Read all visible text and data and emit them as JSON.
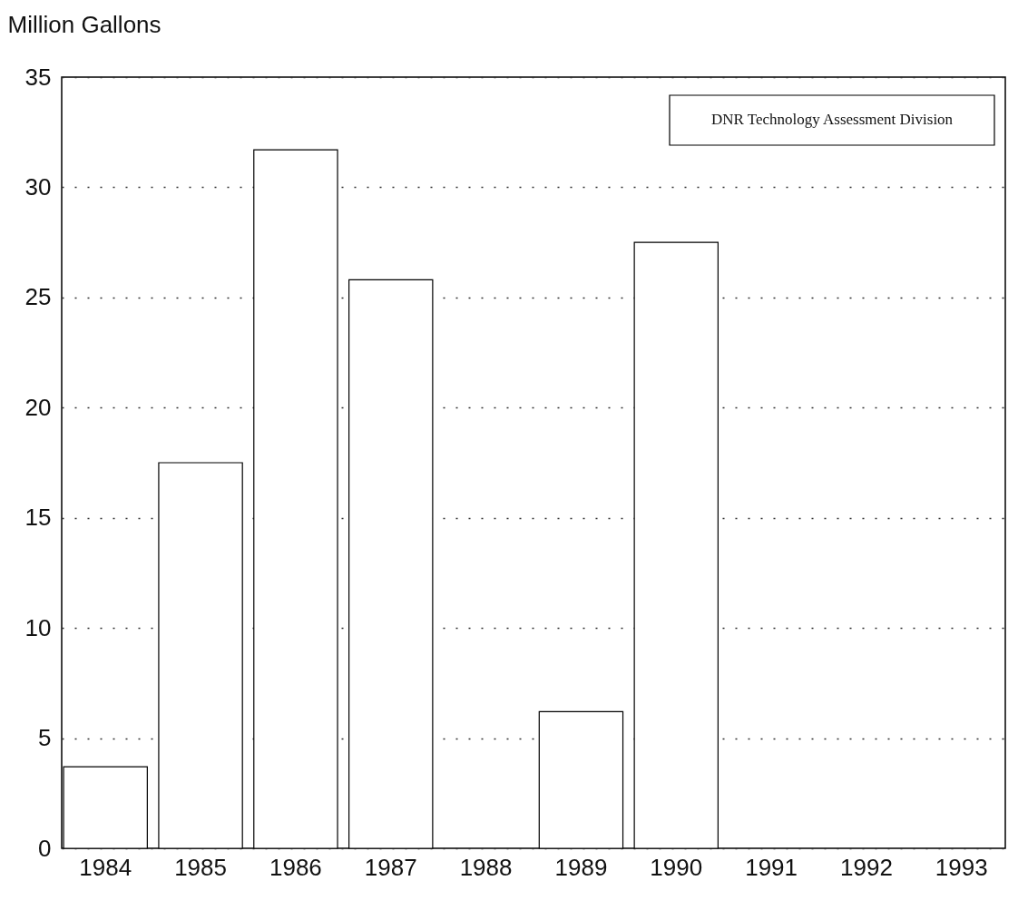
{
  "chart_data": {
    "type": "bar",
    "ylabel": "Million Gallons",
    "categories": [
      "1984",
      "1985",
      "1986",
      "1987",
      "1988",
      "1989",
      "1990",
      "1991",
      "1992",
      "1993"
    ],
    "values": [
      3.7,
      17.5,
      31.7,
      25.8,
      null,
      6.2,
      27.5,
      null,
      null,
      null
    ],
    "color": "#ffffff",
    "ylim": [
      0,
      35
    ],
    "yticks": [
      0,
      5,
      10,
      15,
      20,
      25,
      30,
      35
    ],
    "grid": "y",
    "annotations": [
      "DNR Technology Assessment Division"
    ]
  }
}
